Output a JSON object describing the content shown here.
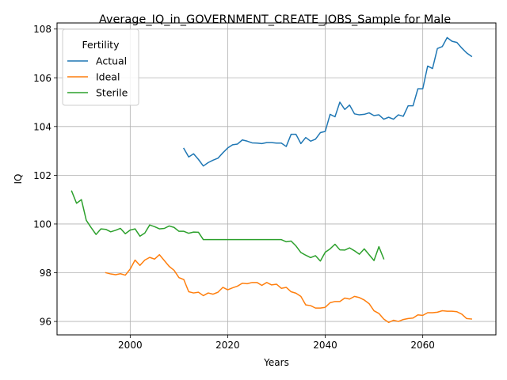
{
  "chart_data": {
    "type": "line",
    "title": "Average_IQ_in_GOVERNMENT_CREATE_JOBS_Sample for Male",
    "xlabel": "Years",
    "ylabel": "IQ",
    "xlim": [
      1985,
      2075
    ],
    "ylim": [
      95.45,
      108.25
    ],
    "xticks": [
      2000,
      2020,
      2040,
      2060
    ],
    "yticks": [
      96,
      98,
      100,
      102,
      104,
      106,
      108
    ],
    "grid": true,
    "legend": {
      "title": "Fertility",
      "placement": "top-left"
    },
    "series": [
      {
        "name": "Actual",
        "color": "#1f77b4",
        "x": [
          2011,
          2012,
          2013,
          2014,
          2015,
          2016,
          2017,
          2018,
          2019,
          2020,
          2021,
          2022,
          2023,
          2024,
          2025,
          2026,
          2027,
          2028,
          2029,
          2030,
          2031,
          2032,
          2033,
          2034,
          2035,
          2036,
          2037,
          2038,
          2039,
          2040,
          2041,
          2042,
          2043,
          2044,
          2045,
          2046,
          2047,
          2048,
          2049,
          2050,
          2051,
          2052,
          2053,
          2054,
          2055,
          2056,
          2057,
          2058,
          2059,
          2060,
          2061,
          2062,
          2063,
          2064,
          2065,
          2066,
          2067,
          2068,
          2069,
          2070
        ],
        "y": [
          103.1,
          102.75,
          102.88,
          102.65,
          102.38,
          102.52,
          102.62,
          102.7,
          102.92,
          103.12,
          103.25,
          103.28,
          103.45,
          103.4,
          103.33,
          103.32,
          103.3,
          103.34,
          103.34,
          103.32,
          103.32,
          103.18,
          103.68,
          103.68,
          103.3,
          103.55,
          103.4,
          103.48,
          103.75,
          103.8,
          104.5,
          104.4,
          105.0,
          104.7,
          104.88,
          104.52,
          104.48,
          104.5,
          104.56,
          104.45,
          104.48,
          104.3,
          104.38,
          104.3,
          104.48,
          104.42,
          104.85,
          104.85,
          105.55,
          105.55,
          106.48,
          106.38,
          107.2,
          107.28,
          107.65,
          107.5,
          107.45,
          107.22,
          107.02,
          106.88
        ]
      },
      {
        "name": "Ideal",
        "color": "#ff7f0e",
        "x": [
          1995,
          1996,
          1997,
          1998,
          1999,
          2000,
          2001,
          2002,
          2003,
          2004,
          2005,
          2006,
          2007,
          2008,
          2009,
          2010,
          2011,
          2012,
          2013,
          2014,
          2015,
          2016,
          2017,
          2018,
          2019,
          2020,
          2021,
          2022,
          2023,
          2024,
          2025,
          2026,
          2027,
          2028,
          2029,
          2030,
          2031,
          2032,
          2033,
          2034,
          2035,
          2036,
          2037,
          2038,
          2039,
          2040,
          2041,
          2042,
          2043,
          2044,
          2045,
          2046,
          2047,
          2048,
          2049,
          2050,
          2051,
          2052,
          2053,
          2054,
          2055,
          2056,
          2057,
          2058,
          2059,
          2060,
          2061,
          2062,
          2063,
          2064,
          2065,
          2066,
          2067,
          2068,
          2069,
          2070
        ],
        "y": [
          98.0,
          97.95,
          97.92,
          97.96,
          97.9,
          98.15,
          98.52,
          98.3,
          98.52,
          98.63,
          98.56,
          98.74,
          98.5,
          98.26,
          98.1,
          97.8,
          97.72,
          97.22,
          97.17,
          97.2,
          97.06,
          97.17,
          97.12,
          97.2,
          97.4,
          97.3,
          97.38,
          97.45,
          97.57,
          97.55,
          97.6,
          97.6,
          97.48,
          97.6,
          97.5,
          97.53,
          97.36,
          97.4,
          97.22,
          97.16,
          97.03,
          96.68,
          96.65,
          96.55,
          96.55,
          96.58,
          96.77,
          96.82,
          96.82,
          96.96,
          96.92,
          97.03,
          96.98,
          96.88,
          96.73,
          96.44,
          96.33,
          96.1,
          95.96,
          96.05,
          96.0,
          96.08,
          96.12,
          96.14,
          96.27,
          96.25,
          96.36,
          96.36,
          96.38,
          96.44,
          96.42,
          96.42,
          96.4,
          96.3,
          96.12,
          96.1
        ]
      },
      {
        "name": "Sterile",
        "color": "#2ca02c",
        "x": [
          1988,
          1989,
          1990,
          1991,
          1992,
          1993,
          1994,
          1995,
          1996,
          1997,
          1998,
          1999,
          2000,
          2001,
          2002,
          2003,
          2004,
          2005,
          2006,
          2007,
          2008,
          2009,
          2010,
          2011,
          2012,
          2013,
          2014,
          2015,
          2016,
          2017,
          2018,
          2019,
          2020,
          2021,
          2022,
          2023,
          2024,
          2025,
          2026,
          2027,
          2028,
          2029,
          2030,
          2031,
          2032,
          2033,
          2034,
          2035,
          2036,
          2037,
          2038,
          2039,
          2040,
          2041,
          2042,
          2043,
          2044,
          2045,
          2046,
          2047,
          2048,
          2049,
          2050,
          2051,
          2052
        ],
        "y": [
          101.35,
          100.85,
          101.0,
          100.15,
          99.85,
          99.57,
          99.8,
          99.78,
          99.68,
          99.74,
          99.82,
          99.6,
          99.75,
          99.8,
          99.5,
          99.63,
          99.96,
          99.89,
          99.8,
          99.82,
          99.92,
          99.86,
          99.7,
          99.7,
          99.62,
          99.67,
          99.66,
          99.36,
          99.36,
          99.36,
          99.36,
          99.36,
          99.36,
          99.36,
          99.36,
          99.36,
          99.36,
          99.36,
          99.36,
          99.36,
          99.36,
          99.36,
          99.36,
          99.36,
          99.27,
          99.3,
          99.1,
          98.83,
          98.72,
          98.62,
          98.7,
          98.48,
          98.84,
          98.98,
          99.17,
          98.94,
          98.93,
          99.02,
          98.9,
          98.76,
          98.98,
          98.74,
          98.5,
          99.07,
          98.57
        ]
      }
    ]
  }
}
